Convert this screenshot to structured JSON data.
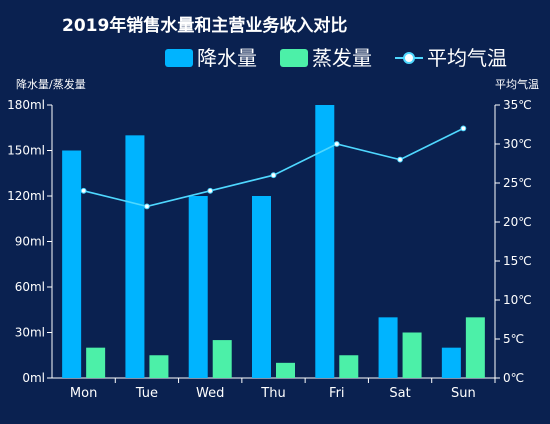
{
  "chart_data": {
    "type": "bar",
    "title": "2019年销售水量和主营业务收入对比",
    "categories": [
      "Mon",
      "Tue",
      "Wed",
      "Thu",
      "Fri",
      "Sat",
      "Sun"
    ],
    "series": [
      {
        "name": "降水量",
        "type": "bar",
        "axis": "left",
        "color": "#00b4ff",
        "values": [
          150,
          160,
          120,
          120,
          180,
          40,
          20
        ]
      },
      {
        "name": "蒸发量",
        "type": "bar",
        "axis": "left",
        "color": "#4cf0a8",
        "values": [
          20,
          15,
          25,
          10,
          15,
          30,
          40
        ]
      },
      {
        "name": "平均气温",
        "type": "line",
        "axis": "right",
        "color": "#4fd8ff",
        "values": [
          24,
          22,
          24,
          26,
          30,
          28,
          32
        ]
      }
    ],
    "y_left": {
      "label": "降水量/蒸发量",
      "range": [
        0,
        180
      ],
      "ticks": [
        0,
        30,
        60,
        90,
        120,
        150,
        180
      ],
      "tick_labels": [
        "0ml",
        "30ml",
        "60ml",
        "90ml",
        "120ml",
        "150ml",
        "180ml"
      ]
    },
    "y_right": {
      "label": "平均气温",
      "range": [
        0,
        35
      ],
      "ticks": [
        0,
        5,
        10,
        15,
        20,
        25,
        30,
        35
      ],
      "tick_labels": [
        "0℃",
        "5℃",
        "10℃",
        "15℃",
        "20℃",
        "25℃",
        "30℃",
        "35℃"
      ]
    },
    "grid": false,
    "legend_position": "top-right",
    "colors": {
      "background": "#0a2150",
      "text": "#ffffff"
    }
  }
}
